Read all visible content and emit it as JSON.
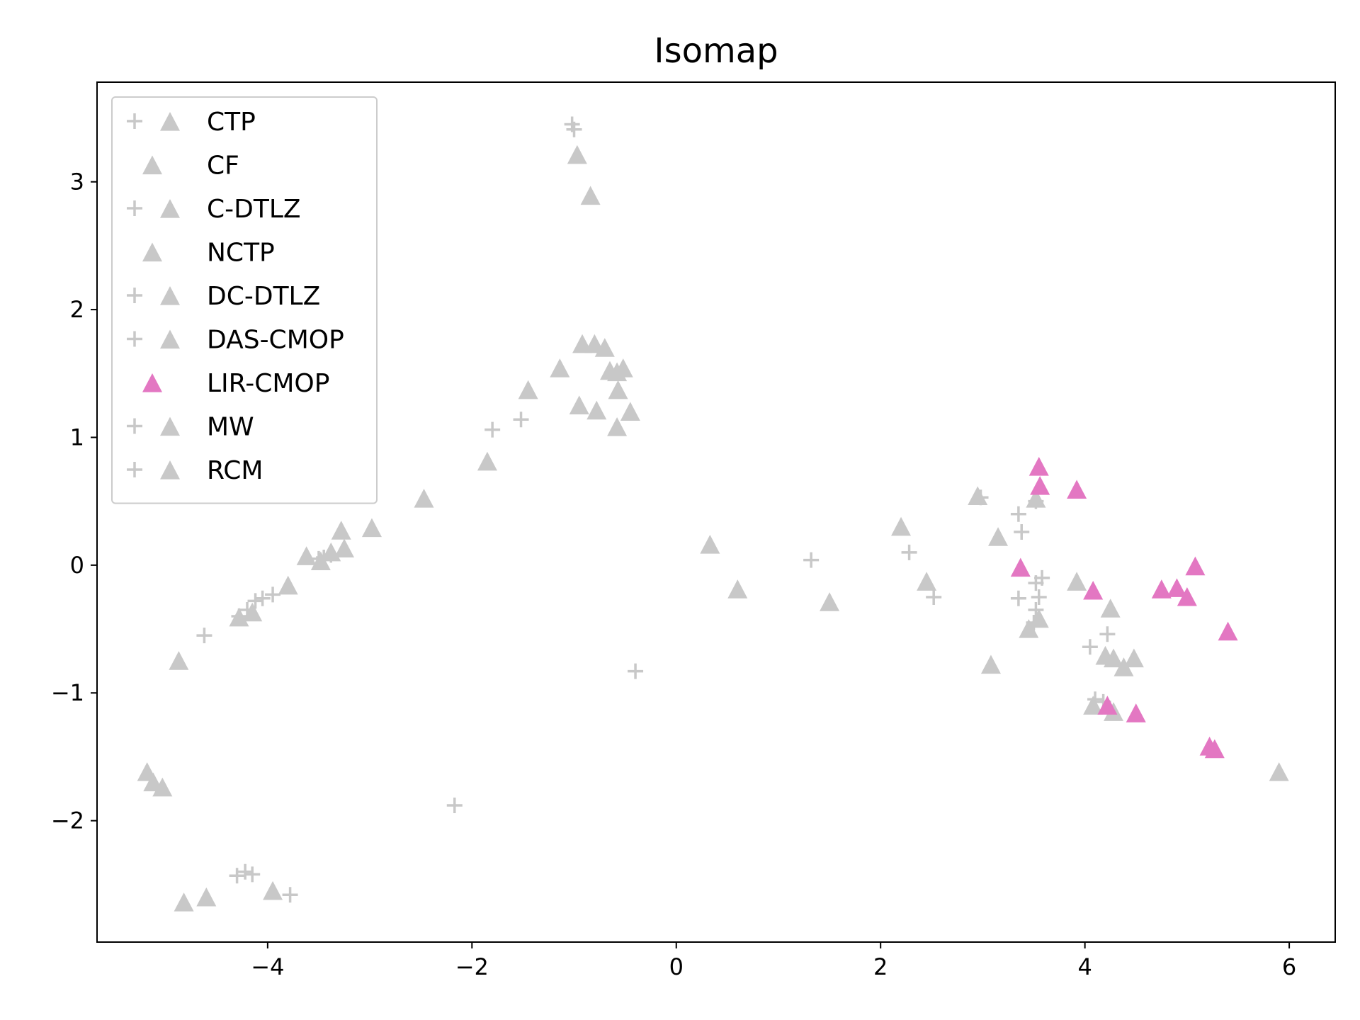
{
  "chart_data": {
    "type": "scatter",
    "title": "Isomap",
    "xlabel": "",
    "ylabel": "",
    "xlim": [
      -5.67,
      6.45
    ],
    "ylim": [
      -2.95,
      3.78
    ],
    "xticks": [
      -4,
      -2,
      0,
      2,
      4,
      6
    ],
    "yticks": [
      -2,
      -1,
      0,
      1,
      2,
      3
    ],
    "xtick_labels": [
      "−4",
      "−2",
      "0",
      "2",
      "4",
      "6"
    ],
    "ytick_labels": [
      "−2",
      "−1",
      "0",
      "1",
      "2",
      "3"
    ],
    "grid": false,
    "legend_position": "upper-left",
    "colors": {
      "gray": "#c8c8c8",
      "pink": "#e377c2"
    },
    "legend": [
      {
        "name": "CTP",
        "markers": [
          "plus",
          "triangle"
        ],
        "color": "#c8c8c8"
      },
      {
        "name": "CF",
        "markers": [
          "triangle"
        ],
        "color": "#c8c8c8"
      },
      {
        "name": "C-DTLZ",
        "markers": [
          "plus",
          "triangle"
        ],
        "color": "#c8c8c8"
      },
      {
        "name": "NCTP",
        "markers": [
          "triangle"
        ],
        "color": "#c8c8c8"
      },
      {
        "name": "DC-DTLZ",
        "markers": [
          "plus",
          "triangle"
        ],
        "color": "#c8c8c8"
      },
      {
        "name": "DAS-CMOP",
        "markers": [
          "plus",
          "triangle"
        ],
        "color": "#c8c8c8"
      },
      {
        "name": "LIR-CMOP",
        "markers": [
          "triangle"
        ],
        "color": "#e377c2"
      },
      {
        "name": "MW",
        "markers": [
          "plus",
          "triangle"
        ],
        "color": "#c8c8c8"
      },
      {
        "name": "RCM",
        "markers": [
          "plus",
          "triangle"
        ],
        "color": "#c8c8c8"
      }
    ],
    "series": [
      {
        "group": "gray-plus",
        "marker": "plus",
        "color": "#c8c8c8",
        "points": [
          [
            -1.02,
            3.45
          ],
          [
            -1.0,
            3.41
          ],
          [
            -1.8,
            1.06
          ],
          [
            -1.52,
            1.14
          ],
          [
            -4.62,
            -0.55
          ],
          [
            -4.28,
            -0.4
          ],
          [
            -4.2,
            -0.35
          ],
          [
            -4.12,
            -0.28
          ],
          [
            -4.05,
            -0.26
          ],
          [
            -3.95,
            -0.23
          ],
          [
            -3.5,
            0.05
          ],
          [
            -3.45,
            0.06
          ],
          [
            -3.38,
            0.08
          ],
          [
            -0.4,
            -0.83
          ],
          [
            -2.17,
            -1.88
          ],
          [
            -4.3,
            -2.43
          ],
          [
            -4.22,
            -2.4
          ],
          [
            -4.15,
            -2.42
          ],
          [
            -3.78,
            -2.58
          ],
          [
            1.32,
            0.04
          ],
          [
            2.28,
            0.1
          ],
          [
            2.52,
            -0.25
          ],
          [
            2.98,
            0.53
          ],
          [
            3.35,
            0.4
          ],
          [
            3.38,
            0.26
          ],
          [
            3.52,
            0.5
          ],
          [
            3.58,
            -0.1
          ],
          [
            3.52,
            -0.14
          ],
          [
            3.35,
            -0.26
          ],
          [
            3.55,
            -0.25
          ],
          [
            3.52,
            -0.35
          ],
          [
            3.5,
            -0.45
          ],
          [
            4.05,
            -0.64
          ],
          [
            4.22,
            -0.54
          ],
          [
            4.1,
            -1.05
          ],
          [
            4.18,
            -1.07
          ]
        ]
      },
      {
        "group": "gray-triangle",
        "marker": "triangle",
        "color": "#c8c8c8",
        "points": [
          [
            -0.97,
            3.21
          ],
          [
            -0.84,
            2.89
          ],
          [
            -0.92,
            1.73
          ],
          [
            -0.8,
            1.73
          ],
          [
            -0.7,
            1.7
          ],
          [
            -0.65,
            1.52
          ],
          [
            -0.58,
            1.51
          ],
          [
            -0.52,
            1.54
          ],
          [
            -1.14,
            1.54
          ],
          [
            -1.45,
            1.37
          ],
          [
            -0.57,
            1.37
          ],
          [
            -0.95,
            1.25
          ],
          [
            -0.78,
            1.21
          ],
          [
            -0.45,
            1.2
          ],
          [
            -0.58,
            1.08
          ],
          [
            -1.85,
            0.81
          ],
          [
            -2.47,
            0.52
          ],
          [
            -2.98,
            0.29
          ],
          [
            -3.28,
            0.27
          ],
          [
            -3.25,
            0.13
          ],
          [
            -3.38,
            0.1
          ],
          [
            -3.62,
            0.07
          ],
          [
            -3.48,
            0.03
          ],
          [
            -3.8,
            -0.16
          ],
          [
            -4.15,
            -0.37
          ],
          [
            -4.28,
            -0.41
          ],
          [
            -4.87,
            -0.75
          ],
          [
            -5.18,
            -1.62
          ],
          [
            -5.12,
            -1.7
          ],
          [
            -5.03,
            -1.74
          ],
          [
            -4.82,
            -2.64
          ],
          [
            -4.6,
            -2.6
          ],
          [
            -3.95,
            -2.55
          ],
          [
            0.33,
            0.16
          ],
          [
            0.6,
            -0.19
          ],
          [
            1.5,
            -0.29
          ],
          [
            2.2,
            0.3
          ],
          [
            2.45,
            -0.13
          ],
          [
            2.95,
            0.54
          ],
          [
            3.15,
            0.22
          ],
          [
            3.52,
            0.52
          ],
          [
            3.92,
            -0.13
          ],
          [
            4.25,
            -0.34
          ],
          [
            3.08,
            -0.78
          ],
          [
            3.45,
            -0.5
          ],
          [
            3.55,
            -0.42
          ],
          [
            4.2,
            -0.71
          ],
          [
            4.28,
            -0.73
          ],
          [
            4.38,
            -0.8
          ],
          [
            4.48,
            -0.73
          ],
          [
            4.08,
            -1.1
          ],
          [
            4.28,
            -1.15
          ],
          [
            5.9,
            -1.62
          ]
        ]
      },
      {
        "group": "pink-triangle",
        "name": "LIR-CMOP",
        "marker": "triangle",
        "color": "#e377c2",
        "points": [
          [
            3.55,
            0.77
          ],
          [
            3.56,
            0.62
          ],
          [
            3.92,
            0.59
          ],
          [
            3.37,
            -0.02
          ],
          [
            4.08,
            -0.2
          ],
          [
            4.75,
            -0.19
          ],
          [
            4.9,
            -0.18
          ],
          [
            5.0,
            -0.25
          ],
          [
            5.08,
            -0.01
          ],
          [
            5.4,
            -0.52
          ],
          [
            4.22,
            -1.1
          ],
          [
            4.5,
            -1.16
          ],
          [
            5.22,
            -1.42
          ],
          [
            5.27,
            -1.44
          ]
        ]
      }
    ]
  }
}
